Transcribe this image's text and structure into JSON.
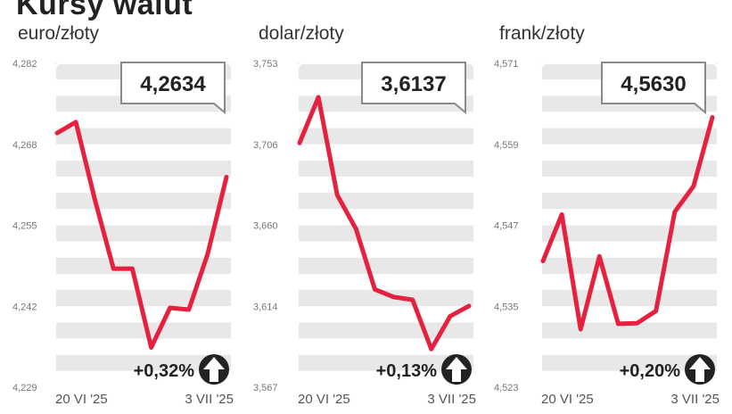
{
  "title": "Kursy walut",
  "colors": {
    "line": "#e6213f",
    "band": "#e8e8e8",
    "box_border": "#8a8a8a",
    "arrow": "#222222"
  },
  "arrow_icon": "up-arrow-circle-icon",
  "chart_data": [
    {
      "type": "line",
      "title": "euro/złoty",
      "ylim": [
        4.229,
        4.282
      ],
      "yticks": [
        "4,229",
        "4,242",
        "4,255",
        "4,268",
        "4,282"
      ],
      "xticks": [
        "20 VI '25",
        "3 VII '25"
      ],
      "values": [
        4.2706,
        4.2724,
        4.2598,
        4.2484,
        4.2484,
        4.2355,
        4.242,
        4.2417,
        4.2508,
        4.2634
      ],
      "current_value": "4,2634",
      "change": "+0,32%"
    },
    {
      "type": "line",
      "title": "dolar/złoty",
      "ylim": [
        3.567,
        3.753
      ],
      "yticks": [
        "3,567",
        "3,614",
        "3,660",
        "3,706",
        "3,753"
      ],
      "xticks": [
        "20 VI '25",
        "3 VII '25"
      ],
      "values": [
        3.7073,
        3.7336,
        3.6774,
        3.6579,
        3.6232,
        3.6188,
        3.6172,
        3.5889,
        3.6078,
        3.6137
      ],
      "current_value": "3,6137",
      "change": "+0,13%"
    },
    {
      "type": "line",
      "title": "frank/złoty",
      "ylim": [
        4.523,
        4.571
      ],
      "yticks": [
        "4,523",
        "4,535",
        "4,547",
        "4,559",
        "4,571"
      ],
      "xticks": [
        "20 VI '25",
        "3 VII '25"
      ],
      "values": [
        4.5417,
        4.5486,
        4.5316,
        4.5424,
        4.5324,
        4.5325,
        4.5343,
        4.549,
        4.5528,
        4.563
      ],
      "current_value": "4,5630",
      "change": "+0,20%"
    }
  ]
}
